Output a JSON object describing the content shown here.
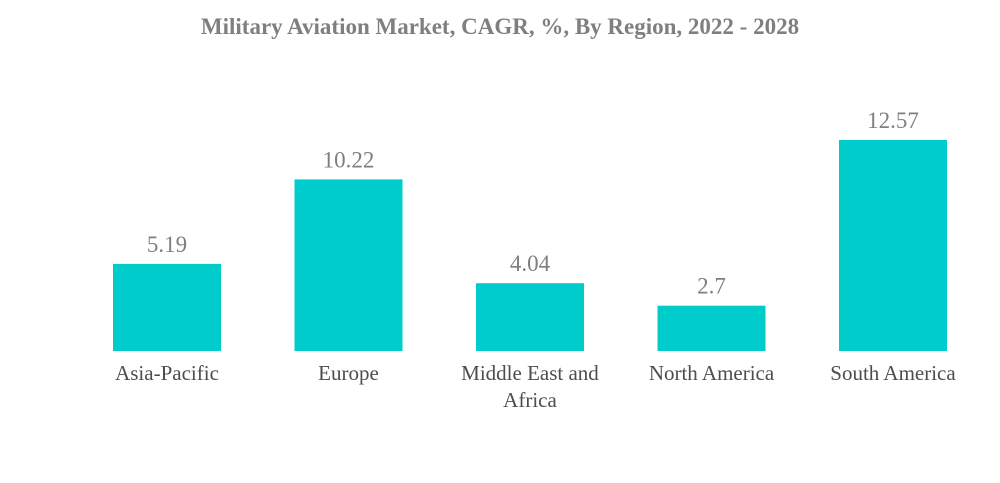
{
  "chart_data": {
    "type": "bar",
    "title": "Military Aviation Market, CAGR, %, By Region, 2022 - 2028",
    "categories": [
      [
        "Asia-Pacific"
      ],
      [
        "Europe"
      ],
      [
        "Middle East and",
        "Africa"
      ],
      [
        "North America"
      ],
      [
        "South America"
      ]
    ],
    "values": [
      5.19,
      10.22,
      4.04,
      2.7,
      12.57
    ],
    "value_labels": [
      "5.19",
      "10.22",
      "4.04",
      "2.7",
      "12.57"
    ],
    "xlabel": "",
    "ylabel": "",
    "ylim": [
      0,
      12.57
    ],
    "grid": false,
    "legend": "none",
    "bar_color": "#00cccc"
  }
}
